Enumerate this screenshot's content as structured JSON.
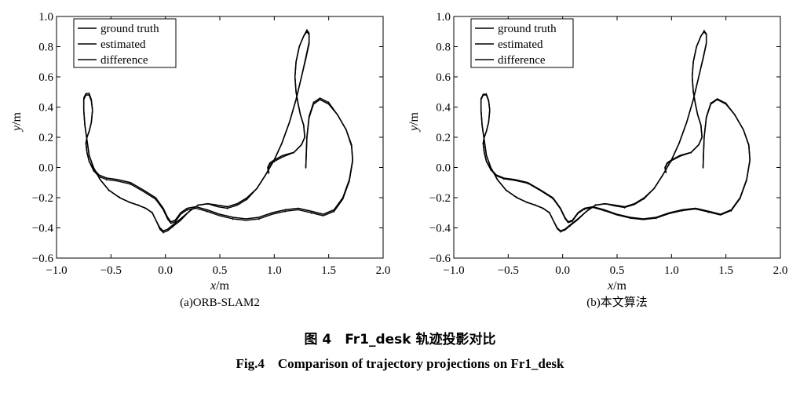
{
  "figure": {
    "caption_cn": "图 4　Fr1_desk 轨迹投影对比",
    "caption_en": "Fig.4　Comparison of trajectory projections on Fr1_desk"
  },
  "chart_data": [
    {
      "type": "line",
      "subplot_caption": "(a)ORB-SLAM2",
      "xlabel": "x/m",
      "ylabel": "y/m",
      "xlim": [
        -1.0,
        2.0
      ],
      "ylim": [
        -0.6,
        1.0
      ],
      "xticks": [
        "−1.0",
        "−0.5",
        "0.0",
        "0.5",
        "1.0",
        "1.5",
        "2.0"
      ],
      "yticks": [
        "−0.6",
        "−0.4",
        "−0.2",
        "0.0",
        "0.2",
        "0.4",
        "0.6",
        "0.8",
        "1.0"
      ],
      "legend_position": "top-left",
      "legend": [
        "ground truth",
        "estimated",
        "difference"
      ],
      "series": [
        {
          "name": "ground truth",
          "color": "#000000",
          "x": [
            0.95,
            0.94,
            0.96,
            1.0,
            1.08,
            1.18,
            1.25,
            1.28,
            1.27,
            1.24,
            1.22,
            1.2,
            1.19,
            1.2,
            1.23,
            1.27,
            1.3,
            1.32,
            1.32,
            1.29,
            1.25,
            1.2,
            1.14,
            1.07,
            1.0,
            0.92,
            0.84,
            0.75,
            0.66,
            0.57,
            0.48,
            0.39,
            0.3,
            0.22,
            0.14,
            0.07,
            0.02,
            -0.02,
            -0.05,
            -0.08,
            -0.12,
            -0.18,
            -0.25,
            -0.33,
            -0.42,
            -0.52,
            -0.6,
            -0.66,
            -0.7,
            -0.72,
            -0.74,
            -0.75,
            -0.75,
            -0.73,
            -0.7,
            -0.68,
            -0.67,
            -0.68,
            -0.7,
            -0.72,
            -0.73,
            -0.72,
            -0.7,
            -0.66,
            -0.61,
            -0.54,
            -0.44,
            -0.32,
            -0.2,
            -0.09,
            -0.02,
            0.02,
            0.05,
            0.09,
            0.14,
            0.2,
            0.28,
            0.38,
            0.5,
            0.62,
            0.74,
            0.86,
            0.98,
            1.1,
            1.22,
            1.34,
            1.45,
            1.55,
            1.63,
            1.69,
            1.72,
            1.71,
            1.66,
            1.58,
            1.5,
            1.42,
            1.36,
            1.32,
            1.3,
            1.29
          ],
          "y": [
            -0.03,
            0.0,
            0.03,
            0.05,
            0.08,
            0.1,
            0.15,
            0.2,
            0.28,
            0.35,
            0.42,
            0.5,
            0.6,
            0.7,
            0.8,
            0.87,
            0.9,
            0.88,
            0.82,
            0.72,
            0.6,
            0.45,
            0.3,
            0.16,
            0.05,
            -0.05,
            -0.14,
            -0.2,
            -0.24,
            -0.26,
            -0.25,
            -0.24,
            -0.25,
            -0.29,
            -0.34,
            -0.38,
            -0.41,
            -0.42,
            -0.4,
            -0.36,
            -0.3,
            -0.27,
            -0.25,
            -0.23,
            -0.2,
            -0.15,
            -0.08,
            0.0,
            0.08,
            0.18,
            0.28,
            0.38,
            0.45,
            0.48,
            0.48,
            0.44,
            0.38,
            0.3,
            0.24,
            0.2,
            0.16,
            0.1,
            0.04,
            -0.01,
            -0.05,
            -0.07,
            -0.08,
            -0.1,
            -0.15,
            -0.2,
            -0.27,
            -0.33,
            -0.36,
            -0.35,
            -0.3,
            -0.27,
            -0.26,
            -0.28,
            -0.31,
            -0.33,
            -0.34,
            -0.33,
            -0.3,
            -0.28,
            -0.27,
            -0.29,
            -0.31,
            -0.28,
            -0.2,
            -0.08,
            0.05,
            0.15,
            0.25,
            0.35,
            0.42,
            0.45,
            0.42,
            0.33,
            0.2,
            0.0
          ]
        },
        {
          "name": "estimated",
          "color": "#000000",
          "x": [
            0.95,
            0.94,
            0.96,
            1.0,
            1.08,
            1.18,
            1.25,
            1.28,
            1.27,
            1.24,
            1.22,
            1.2,
            1.19,
            1.2,
            1.23,
            1.27,
            1.3,
            1.32,
            1.32,
            1.29,
            1.25,
            1.2,
            1.14,
            1.07,
            1.0,
            0.92,
            0.84,
            0.75,
            0.66,
            0.57,
            0.48,
            0.39,
            0.3,
            0.22,
            0.14,
            0.07,
            0.02,
            -0.02,
            -0.05,
            -0.08,
            -0.12,
            -0.18,
            -0.25,
            -0.33,
            -0.42,
            -0.52,
            -0.6,
            -0.66,
            -0.7,
            -0.72,
            -0.74,
            -0.75,
            -0.75,
            -0.73,
            -0.7,
            -0.68,
            -0.67,
            -0.68,
            -0.7,
            -0.72,
            -0.73,
            -0.72,
            -0.7,
            -0.66,
            -0.61,
            -0.54,
            -0.44,
            -0.32,
            -0.2,
            -0.09,
            -0.02,
            0.02,
            0.05,
            0.09,
            0.14,
            0.2,
            0.28,
            0.38,
            0.5,
            0.62,
            0.74,
            0.86,
            0.98,
            1.1,
            1.22,
            1.34,
            1.45,
            1.55,
            1.63,
            1.69,
            1.72,
            1.71,
            1.66,
            1.58,
            1.5,
            1.42,
            1.36,
            1.32,
            1.3,
            1.29
          ],
          "y": [
            -0.04,
            -0.01,
            0.02,
            0.04,
            0.07,
            0.1,
            0.15,
            0.2,
            0.28,
            0.35,
            0.42,
            0.5,
            0.6,
            0.7,
            0.8,
            0.87,
            0.91,
            0.89,
            0.83,
            0.73,
            0.6,
            0.45,
            0.3,
            0.16,
            0.05,
            -0.05,
            -0.14,
            -0.21,
            -0.25,
            -0.27,
            -0.26,
            -0.24,
            -0.25,
            -0.29,
            -0.35,
            -0.39,
            -0.42,
            -0.43,
            -0.41,
            -0.36,
            -0.3,
            -0.27,
            -0.25,
            -0.23,
            -0.2,
            -0.15,
            -0.08,
            0.0,
            0.08,
            0.18,
            0.28,
            0.38,
            0.46,
            0.49,
            0.49,
            0.45,
            0.38,
            0.3,
            0.24,
            0.2,
            0.16,
            0.1,
            0.04,
            -0.02,
            -0.06,
            -0.08,
            -0.09,
            -0.11,
            -0.16,
            -0.21,
            -0.28,
            -0.34,
            -0.37,
            -0.36,
            -0.31,
            -0.28,
            -0.27,
            -0.29,
            -0.32,
            -0.34,
            -0.35,
            -0.34,
            -0.31,
            -0.29,
            -0.28,
            -0.3,
            -0.32,
            -0.29,
            -0.21,
            -0.09,
            0.04,
            0.14,
            0.25,
            0.35,
            0.43,
            0.46,
            0.43,
            0.34,
            0.2,
            0.0
          ]
        }
      ]
    },
    {
      "type": "line",
      "subplot_caption": "(b)本文算法",
      "xlabel": "x/m",
      "ylabel": "y/m",
      "xlim": [
        -1.0,
        2.0
      ],
      "ylim": [
        -0.6,
        1.0
      ],
      "xticks": [
        "−1.0",
        "−0.5",
        "0.0",
        "0.5",
        "1.0",
        "1.5",
        "2.0"
      ],
      "yticks": [
        "−0.6",
        "−0.4",
        "−0.2",
        "0.0",
        "0.2",
        "0.4",
        "0.6",
        "0.8",
        "1.0"
      ],
      "legend_position": "top-left",
      "legend": [
        "ground truth",
        "estimated",
        "difference"
      ],
      "series": [
        {
          "name": "ground truth",
          "color": "#000000",
          "x": [
            0.95,
            0.94,
            0.96,
            1.0,
            1.08,
            1.18,
            1.25,
            1.28,
            1.27,
            1.24,
            1.22,
            1.2,
            1.19,
            1.2,
            1.23,
            1.27,
            1.3,
            1.32,
            1.32,
            1.29,
            1.25,
            1.2,
            1.14,
            1.07,
            1.0,
            0.92,
            0.84,
            0.75,
            0.66,
            0.57,
            0.48,
            0.39,
            0.3,
            0.22,
            0.14,
            0.07,
            0.02,
            -0.02,
            -0.05,
            -0.08,
            -0.12,
            -0.18,
            -0.25,
            -0.33,
            -0.42,
            -0.52,
            -0.6,
            -0.66,
            -0.7,
            -0.72,
            -0.74,
            -0.75,
            -0.75,
            -0.73,
            -0.7,
            -0.68,
            -0.67,
            -0.68,
            -0.7,
            -0.72,
            -0.73,
            -0.72,
            -0.7,
            -0.66,
            -0.61,
            -0.54,
            -0.44,
            -0.32,
            -0.2,
            -0.09,
            -0.02,
            0.02,
            0.05,
            0.09,
            0.14,
            0.2,
            0.28,
            0.38,
            0.5,
            0.62,
            0.74,
            0.86,
            0.98,
            1.1,
            1.22,
            1.34,
            1.45,
            1.55,
            1.63,
            1.69,
            1.72,
            1.71,
            1.66,
            1.58,
            1.5,
            1.42,
            1.36,
            1.32,
            1.3,
            1.29
          ],
          "y": [
            -0.03,
            0.0,
            0.03,
            0.05,
            0.08,
            0.1,
            0.15,
            0.2,
            0.28,
            0.35,
            0.42,
            0.5,
            0.6,
            0.7,
            0.8,
            0.87,
            0.9,
            0.88,
            0.82,
            0.72,
            0.6,
            0.45,
            0.3,
            0.16,
            0.05,
            -0.05,
            -0.14,
            -0.2,
            -0.24,
            -0.26,
            -0.25,
            -0.24,
            -0.25,
            -0.29,
            -0.34,
            -0.38,
            -0.41,
            -0.42,
            -0.4,
            -0.36,
            -0.3,
            -0.27,
            -0.25,
            -0.23,
            -0.2,
            -0.15,
            -0.08,
            0.0,
            0.08,
            0.18,
            0.28,
            0.38,
            0.45,
            0.48,
            0.48,
            0.44,
            0.38,
            0.3,
            0.24,
            0.2,
            0.16,
            0.1,
            0.04,
            -0.01,
            -0.05,
            -0.07,
            -0.08,
            -0.1,
            -0.15,
            -0.2,
            -0.27,
            -0.33,
            -0.36,
            -0.35,
            -0.3,
            -0.27,
            -0.26,
            -0.28,
            -0.31,
            -0.33,
            -0.34,
            -0.33,
            -0.3,
            -0.28,
            -0.27,
            -0.29,
            -0.31,
            -0.28,
            -0.2,
            -0.08,
            0.05,
            0.15,
            0.25,
            0.35,
            0.42,
            0.45,
            0.42,
            0.33,
            0.2,
            0.0
          ]
        },
        {
          "name": "estimated",
          "color": "#000000",
          "x": [
            0.95,
            0.94,
            0.96,
            1.0,
            1.08,
            1.18,
            1.25,
            1.28,
            1.27,
            1.24,
            1.22,
            1.2,
            1.19,
            1.2,
            1.23,
            1.27,
            1.3,
            1.32,
            1.32,
            1.29,
            1.25,
            1.2,
            1.14,
            1.07,
            1.0,
            0.92,
            0.84,
            0.75,
            0.66,
            0.57,
            0.48,
            0.39,
            0.3,
            0.22,
            0.14,
            0.07,
            0.02,
            -0.02,
            -0.05,
            -0.08,
            -0.12,
            -0.18,
            -0.25,
            -0.33,
            -0.42,
            -0.52,
            -0.6,
            -0.66,
            -0.7,
            -0.72,
            -0.74,
            -0.75,
            -0.75,
            -0.73,
            -0.7,
            -0.68,
            -0.67,
            -0.68,
            -0.7,
            -0.72,
            -0.73,
            -0.72,
            -0.7,
            -0.66,
            -0.61,
            -0.54,
            -0.44,
            -0.32,
            -0.2,
            -0.09,
            -0.02,
            0.02,
            0.05,
            0.09,
            0.14,
            0.2,
            0.28,
            0.38,
            0.5,
            0.62,
            0.74,
            0.86,
            0.98,
            1.1,
            1.22,
            1.34,
            1.45,
            1.55,
            1.63,
            1.69,
            1.72,
            1.71,
            1.66,
            1.58,
            1.5,
            1.42,
            1.36,
            1.32,
            1.3,
            1.29
          ],
          "y": [
            -0.035,
            -0.005,
            0.025,
            0.045,
            0.075,
            0.1,
            0.15,
            0.2,
            0.28,
            0.35,
            0.42,
            0.5,
            0.6,
            0.7,
            0.8,
            0.87,
            0.905,
            0.885,
            0.825,
            0.725,
            0.6,
            0.45,
            0.3,
            0.16,
            0.05,
            -0.05,
            -0.14,
            -0.205,
            -0.245,
            -0.265,
            -0.255,
            -0.24,
            -0.25,
            -0.29,
            -0.345,
            -0.385,
            -0.415,
            -0.425,
            -0.405,
            -0.36,
            -0.3,
            -0.27,
            -0.25,
            -0.23,
            -0.2,
            -0.15,
            -0.08,
            0.0,
            0.08,
            0.18,
            0.28,
            0.38,
            0.455,
            0.485,
            0.485,
            0.445,
            0.38,
            0.3,
            0.24,
            0.2,
            0.16,
            0.1,
            0.04,
            -0.015,
            -0.055,
            -0.075,
            -0.085,
            -0.105,
            -0.155,
            -0.205,
            -0.275,
            -0.335,
            -0.365,
            -0.355,
            -0.305,
            -0.275,
            -0.265,
            -0.285,
            -0.315,
            -0.335,
            -0.345,
            -0.335,
            -0.305,
            -0.285,
            -0.275,
            -0.295,
            -0.315,
            -0.285,
            -0.205,
            -0.085,
            0.045,
            0.145,
            0.25,
            0.35,
            0.425,
            0.455,
            0.425,
            0.335,
            0.2,
            0.0
          ]
        }
      ]
    }
  ]
}
